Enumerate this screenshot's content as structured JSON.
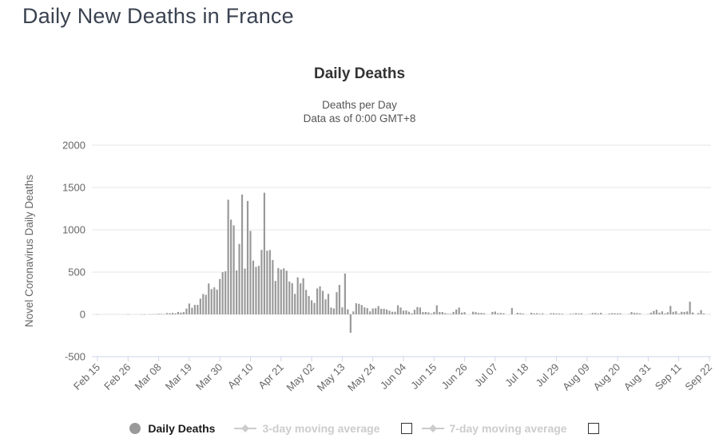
{
  "page": {
    "title": "Daily New Deaths in France"
  },
  "chart": {
    "title": "Daily Deaths",
    "subtitle1": "Deaths per Day",
    "subtitle2": "Data as of 0:00 GMT+8"
  },
  "legend": {
    "items": [
      {
        "label": "Daily Deaths",
        "marker": "circle-icon",
        "enabled": true
      },
      {
        "label": "3-day moving average",
        "marker": "diamond-line-icon",
        "enabled": false,
        "checkbox_checked": false
      },
      {
        "label": "7-day moving average",
        "marker": "diamond-line-icon",
        "enabled": false,
        "checkbox_checked": false
      }
    ]
  },
  "colors": {
    "bar": "#9a9a9a",
    "legend_marker": "#999999",
    "legend_disabled": "#cccccc",
    "gridline": "#e6e6e6",
    "axis_line": "#ccd6eb",
    "axis_text": "#666666",
    "title_text": "#333333",
    "page_title_text": "#3b4351"
  },
  "chart_data": {
    "type": "bar",
    "title": "Daily Deaths",
    "subtitle": [
      "Deaths per Day",
      "Data as of 0:00 GMT+8"
    ],
    "ylabel": "Novel Coronavirus Daily Deaths",
    "xlabel": "",
    "ylim": [
      -500,
      2000
    ],
    "yticks": [
      -500,
      0,
      500,
      1000,
      1500,
      2000
    ],
    "grid": true,
    "legend_position": "bottom",
    "x_start": "Feb 15",
    "x_end": "Sep 22",
    "x_unit": "day",
    "tick_every_n_days": 11,
    "xticks": [
      "Feb 15",
      "Feb 26",
      "Mar 08",
      "Mar 19",
      "Mar 30",
      "Apr 10",
      "Apr 21",
      "May 02",
      "May 13",
      "May 24",
      "Jun 04",
      "Jun 15",
      "Jun 26",
      "Jul 07",
      "Jul 18",
      "Jul 29",
      "Aug 09",
      "Aug 20",
      "Aug 31",
      "Sep 11",
      "Sep 22"
    ],
    "series": [
      {
        "name": "Daily Deaths",
        "color": "#9a9a9a",
        "visible": true,
        "values": [
          1,
          0,
          0,
          0,
          0,
          0,
          0,
          0,
          0,
          0,
          0,
          1,
          0,
          0,
          0,
          0,
          1,
          1,
          0,
          2,
          3,
          2,
          8,
          6,
          3,
          15,
          13,
          18,
          12,
          29,
          21,
          27,
          69,
          128,
          78,
          112,
          112,
          186,
          240,
          231,
          365,
          299,
          319,
          292,
          418,
          499,
          509,
          1355,
          1120,
          1053,
          518,
          833,
          1417,
          541,
          1341,
          987,
          635,
          561,
          574,
          762,
          1438,
          753,
          761,
          642,
          395,
          547,
          531,
          544,
          516,
          389,
          369,
          242,
          437,
          367,
          427,
          289,
          218,
          166,
          135,
          306,
          330,
          278,
          178,
          243,
          80,
          70,
          263,
          348,
          83,
          483,
          60,
          -217,
          35,
          131,
          125,
          110,
          83,
          74,
          35,
          70,
          73,
          98,
          66,
          66,
          57,
          43,
          31,
          31,
          107,
          81,
          44,
          46,
          31,
          13,
          54,
          87,
          81,
          27,
          28,
          24,
          9,
          29,
          107,
          28,
          28,
          14,
          7,
          7,
          29,
          57,
          81,
          21,
          26,
          0,
          0,
          31,
          27,
          18,
          18,
          14,
          0,
          0,
          29,
          33,
          14,
          16,
          13,
          0,
          0,
          75,
          0,
          19,
          14,
          10,
          0,
          0,
          19,
          11,
          13,
          7,
          11,
          0,
          0,
          13,
          14,
          10,
          10,
          9,
          0,
          0,
          7,
          7,
          14,
          11,
          12,
          0,
          0,
          5,
          16,
          17,
          10,
          18,
          0,
          0,
          10,
          14,
          13,
          12,
          12,
          0,
          0,
          4,
          27,
          17,
          15,
          12,
          0,
          0,
          4,
          20,
          40,
          55,
          20,
          35,
          10,
          25,
          100,
          30,
          36,
          8,
          30,
          28,
          35,
          150,
          22,
          0,
          15,
          50,
          10,
          0,
          0
        ]
      },
      {
        "name": "3-day moving average",
        "visible": false,
        "values": []
      },
      {
        "name": "7-day moving average",
        "visible": false,
        "values": []
      }
    ]
  }
}
